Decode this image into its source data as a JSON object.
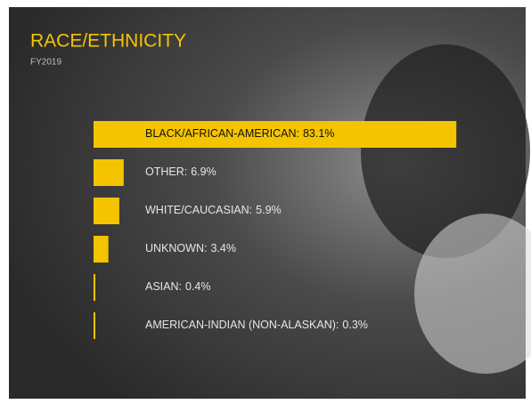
{
  "chart_data": {
    "type": "bar",
    "orientation": "horizontal",
    "title": "RACE/ETHNICITY",
    "subtitle": "FY2019",
    "categories": [
      "BLACK/AFRICAN-AMERICAN:",
      "OTHER:",
      "WHITE/CAUCASIAN:",
      "UNKNOWN:",
      "ASIAN:",
      "AMERICAN-INDIAN (NON-ALASKAN):"
    ],
    "values": [
      83.1,
      6.9,
      5.9,
      3.4,
      0.4,
      0.3
    ],
    "value_labels": [
      "83.1%",
      "6.9%",
      "5.9%",
      "3.4%",
      "0.4%",
      "0.3%"
    ],
    "color": "#f5c400"
  }
}
